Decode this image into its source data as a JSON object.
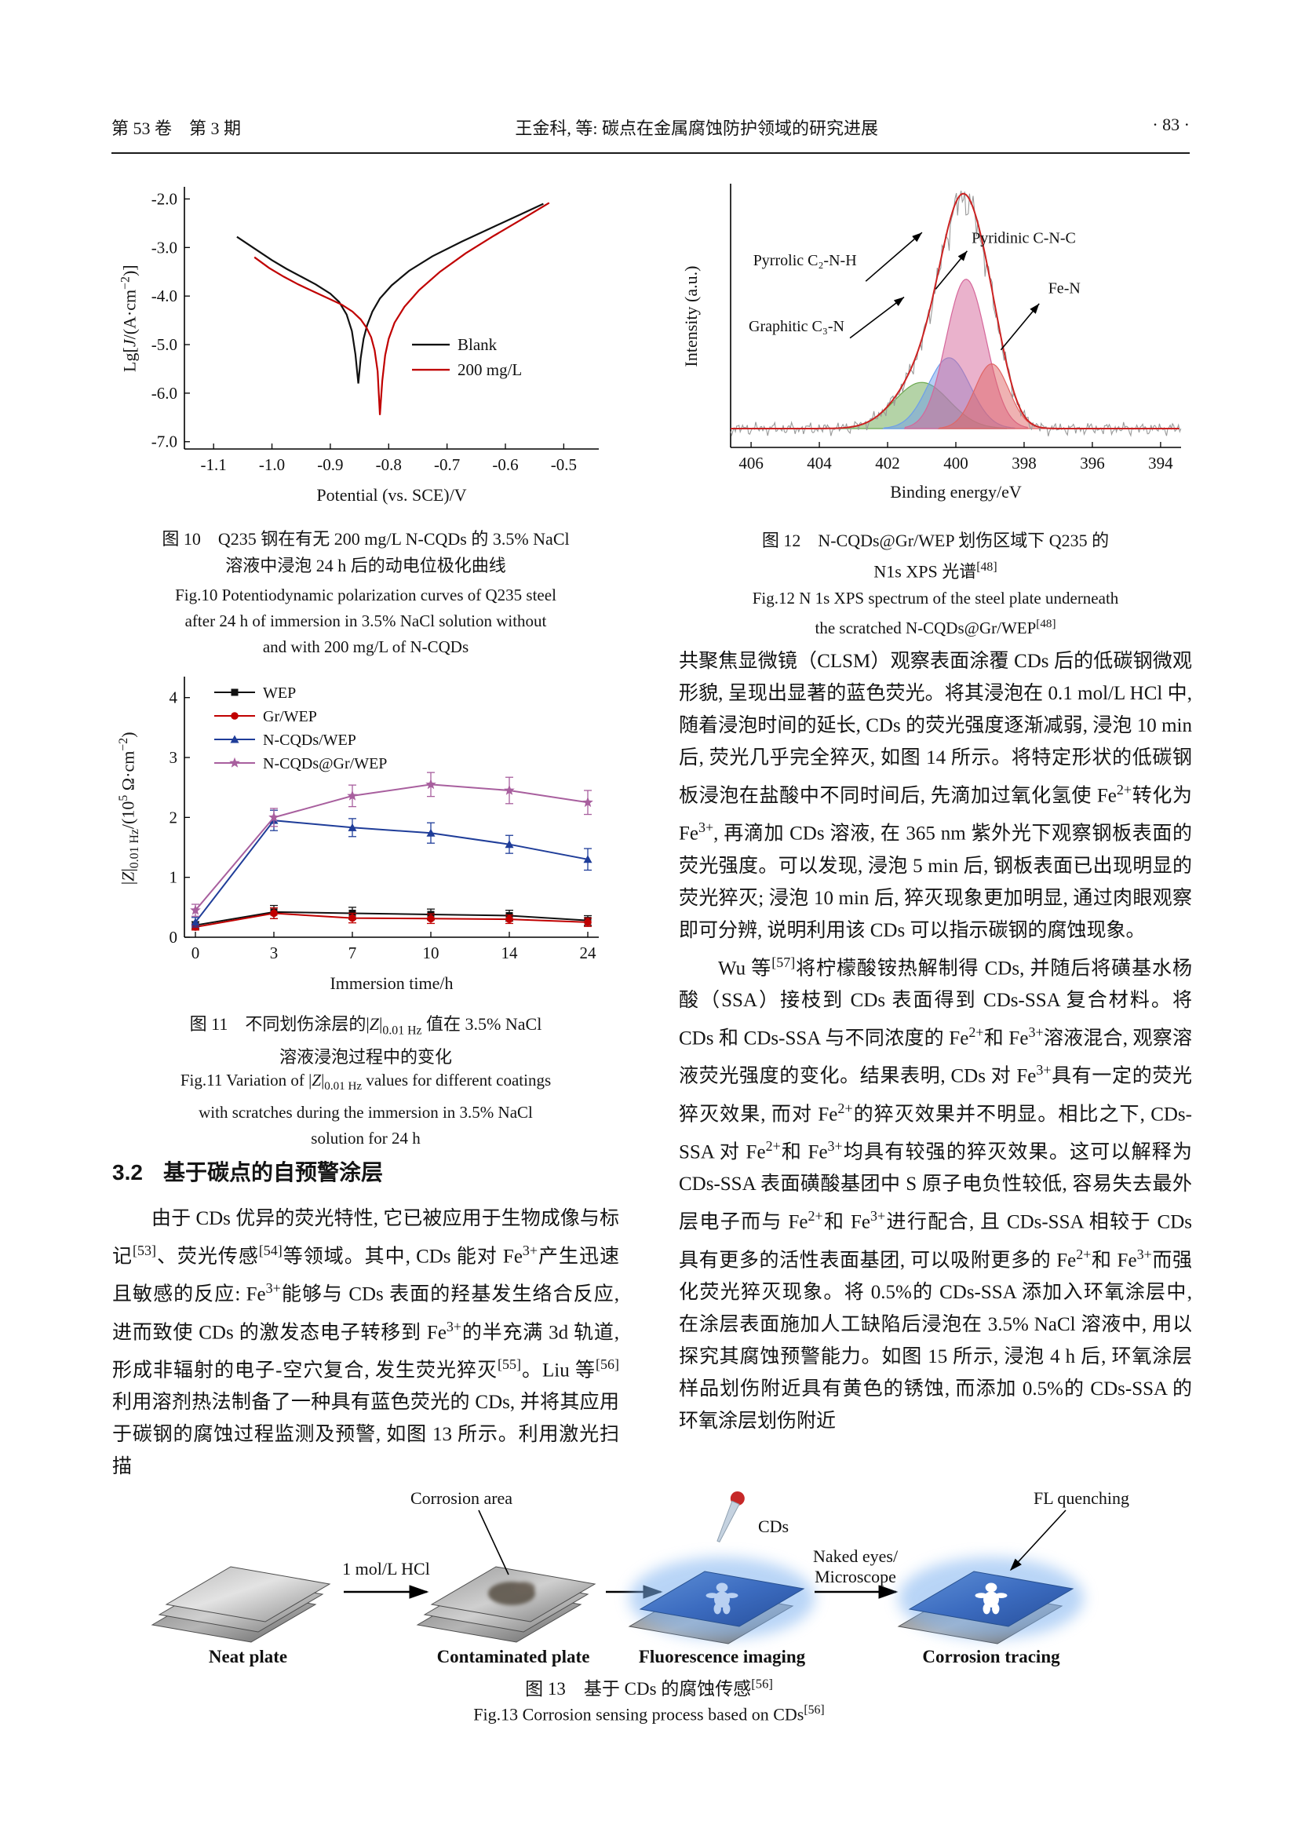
{
  "header": {
    "volume_issue": "第 53 卷　第 3 期",
    "running_title": "王金科, 等: 碳点在金属腐蚀防护领域的研究进展",
    "page_number": "· 83 ·"
  },
  "section_32": {
    "number": "3.2",
    "title": "基于碳点的自预警涂层"
  },
  "paragraphs": {
    "left_html": "由于 CDs 优异的荧光特性, 它已被应用于生物成像与标记<sup>[53]</sup>、荧光传感<sup>[54]</sup>等领域。其中, CDs 能对 Fe<sup>3+</sup>产生迅速且敏感的反应: Fe<sup>3+</sup>能够与 CDs 表面的羟基发生络合反应, 进而致使 CDs 的激发态电子转移到 Fe<sup>3+</sup>的半充满 3d 轨道, 形成非辐射的电子-空穴复合, 发生荧光猝灭<sup>[55]</sup>。Liu 等<sup>[56]</sup>利用溶剂热法制备了一种具有蓝色荧光的 CDs, 并将其应用于碳钢的腐蚀过程监测及预警, 如图 13 所示。利用激光扫描",
    "right1_html": "共聚焦显微镜（CLSM）观察表面涂覆 CDs 后的低碳钢微观形貌, 呈现出显著的蓝色荧光。将其浸泡在 0.1 mol/L HCl 中, 随着浸泡时间的延长, CDs 的荧光强度逐渐减弱, 浸泡 10 min 后, 荧光几乎完全猝灭, 如图 14 所示。将特定形状的低碳钢板浸泡在盐酸中不同时间后, 先滴加过氧化氢使 Fe<sup>2+</sup>转化为 Fe<sup>3+</sup>, 再滴加 CDs 溶液, 在 365 nm 紫外光下观察钢板表面的荧光强度。可以发现, 浸泡 5 min 后, 钢板表面已出现明显的荧光猝灭; 浸泡 10 min 后, 猝灭现象更加明显, 通过肉眼观察即可分辨, 说明利用该 CDs 可以指示碳钢的腐蚀现象。",
    "right2_html": "Wu 等<sup>[57]</sup>将柠檬酸铵热解制得 CDs, 并随后将磺基水杨酸（SSA）接枝到 CDs 表面得到 CDs-SSA 复合材料。将 CDs 和 CDs-SSA 与不同浓度的 Fe<sup>2+</sup>和 Fe<sup>3+</sup>溶液混合, 观察溶液荧光强度的变化。结果表明, CDs 对 Fe<sup>3+</sup>具有一定的荧光猝灭效果, 而对 Fe<sup>2+</sup>的猝灭效果并不明显。相比之下, CDs-SSA 对 Fe<sup>2+</sup>和 Fe<sup>3+</sup>均具有较强的猝灭效果。这可以解释为 CDs-SSA 表面磺酸基团中 S 原子电负性较低, 容易失去最外层电子而与 Fe<sup>2+</sup>和 Fe<sup>3+</sup>进行配合, 且 CDs-SSA 相较于 CDs 具有更多的活性表面基团, 可以吸附更多的 Fe<sup>2+</sup>和 Fe<sup>3+</sup>而强化荧光猝灭现象。将 0.5%的 CDs-SSA 添加入环氧涂层中, 在涂层表面施加人工缺陷后浸泡在 3.5% NaCl 溶液中, 用以探究其腐蚀预警能力。如图 15 所示, 浸泡 4 h 后, 环氧涂层样品划伤附近具有黄色的锈蚀, 而添加 0.5%的 CDs-SSA 的环氧涂层划伤附近"
  },
  "figures": {
    "fig10": {
      "caption_cn_html": "图 10　Q235 钢在有无 200 mg/L N-CQDs 的 3.5% NaCl<br>溶液中浸泡 24 h 后的动电位极化曲线",
      "caption_en_html": "Fig.10 Potentiodynamic polarization curves of Q235 steel<br>after 24 h of immersion in 3.5% NaCl solution without<br>and with 200 mg/L of N-CQDs"
    },
    "fig11": {
      "caption_cn_html": "图 11　不同划伤涂层的|<i>Z</i>|<sub>0.01 Hz</sub> 值在 3.5% NaCl<br>溶液浸泡过程中的变化",
      "caption_en_html": "Fig.11 Variation of |<i>Z</i>|<sub>0.01 Hz</sub> values for different coatings<br>with scratches during the immersion in 3.5% NaCl<br>solution for 24 h"
    },
    "fig12": {
      "caption_cn_html": "图 12　N-CQDs@Gr/WEP 划伤区域下 Q235 的<br>N1s XPS 光谱<sup>[48]</sup>",
      "caption_en_html": "Fig.12 N 1s XPS spectrum of the steel plate underneath<br>the scratched N-CQDs@Gr/WEP<sup>[48]</sup>"
    },
    "fig13": {
      "caption_cn_html": "图 13　基于 CDs 的腐蚀传感<sup>[56]</sup>",
      "caption_en_html": "Fig.13 Corrosion sensing process based on CDs<sup>[56]</sup>",
      "stage_labels": [
        "Neat plate",
        "Contaminated plate",
        "Fluorescence imaging",
        "Corrosion tracing"
      ],
      "arrow_labels": {
        "hcl": "1 mol/L HCl",
        "naked_eyes_line1": "Naked eyes/",
        "naked_eyes_line2": "Microscope"
      },
      "annotations": {
        "corrosion_area": "Corrosion area",
        "cds": "CDs",
        "fl_quenching": "FL quenching"
      }
    }
  },
  "chart_data": [
    {
      "id": "fig10",
      "type": "line",
      "xlabel": "Potential (vs. SCE)/V",
      "ylabel": "Lg[J/(A·cm⁻²)]",
      "ylabel_html": "Lg[<i>J</i>/(A·cm<sup>−2</sup>)]",
      "xlim": [
        -1.15,
        -0.44
      ],
      "ylim": [
        -7.15,
        -1.75
      ],
      "xticks": [
        -1.1,
        -1.0,
        -0.9,
        -0.8,
        -0.7,
        -0.6,
        -0.5
      ],
      "yticks": [
        -7.0,
        -6.0,
        -5.0,
        -4.0,
        -3.0,
        -2.0
      ],
      "legend_position": "center-right",
      "series": [
        {
          "name": "Blank",
          "color": "#111111",
          "x": [
            -1.06,
            -1.03,
            -1.0,
            -0.975,
            -0.95,
            -0.925,
            -0.9,
            -0.885,
            -0.872,
            -0.863,
            -0.857,
            -0.852,
            -0.848,
            -0.843,
            -0.837,
            -0.828,
            -0.815,
            -0.795,
            -0.765,
            -0.725,
            -0.675,
            -0.625,
            -0.578,
            -0.535
          ],
          "y": [
            -2.78,
            -3.02,
            -3.26,
            -3.44,
            -3.6,
            -3.76,
            -3.95,
            -4.12,
            -4.38,
            -4.72,
            -5.2,
            -5.8,
            -5.28,
            -4.88,
            -4.6,
            -4.32,
            -4.05,
            -3.78,
            -3.48,
            -3.18,
            -2.88,
            -2.6,
            -2.34,
            -2.1
          ]
        },
        {
          "name": "200 mg/L",
          "color": "#c00000",
          "x": [
            -1.03,
            -1.005,
            -0.98,
            -0.955,
            -0.93,
            -0.905,
            -0.88,
            -0.862,
            -0.848,
            -0.838,
            -0.83,
            -0.824,
            -0.819,
            -0.815,
            -0.811,
            -0.806,
            -0.8,
            -0.79,
            -0.773,
            -0.748,
            -0.712,
            -0.668,
            -0.62,
            -0.572,
            -0.525
          ],
          "y": [
            -3.2,
            -3.42,
            -3.6,
            -3.76,
            -3.9,
            -4.04,
            -4.18,
            -4.32,
            -4.48,
            -4.65,
            -4.85,
            -5.12,
            -5.55,
            -6.45,
            -5.75,
            -5.22,
            -4.88,
            -4.55,
            -4.22,
            -3.88,
            -3.5,
            -3.12,
            -2.76,
            -2.42,
            -2.08
          ]
        }
      ]
    },
    {
      "id": "fig11",
      "type": "line",
      "xlabel": "Immersion time/h",
      "ylabel": "|Z|0.01 Hz/(10⁵ Ω·cm⁻²)",
      "ylabel_html": "|<i>Z</i>|<sub>0.01 Hz</sub>/(10<sup>5</sup> Ω·cm<sup>−2</sup>)",
      "categories": [
        "0",
        "3",
        "7",
        "10",
        "14",
        "24"
      ],
      "ylim": [
        0,
        4.35
      ],
      "yticks": [
        0,
        1,
        2,
        3,
        4
      ],
      "legend_position": "top-left",
      "series": [
        {
          "name": "WEP",
          "color": "#111111",
          "marker": "square",
          "values": [
            0.2,
            0.42,
            0.4,
            0.38,
            0.36,
            0.28
          ],
          "errors": [
            0.06,
            0.11,
            0.1,
            0.09,
            0.09,
            0.08
          ]
        },
        {
          "name": "Gr/WEP",
          "color": "#c00000",
          "marker": "circle",
          "values": [
            0.17,
            0.4,
            0.32,
            0.31,
            0.3,
            0.25
          ],
          "errors": [
            0.05,
            0.09,
            0.08,
            0.08,
            0.07,
            0.07
          ]
        },
        {
          "name": "N-CQDs/WEP",
          "color": "#1f3d99",
          "marker": "triangle",
          "values": [
            0.25,
            1.95,
            1.83,
            1.74,
            1.55,
            1.3
          ],
          "errors": [
            0.08,
            0.17,
            0.15,
            0.17,
            0.15,
            0.18
          ]
        },
        {
          "name": "N-CQDs@Gr/WEP",
          "color": "#a85f9e",
          "marker": "star",
          "values": [
            0.45,
            2.0,
            2.36,
            2.55,
            2.45,
            2.25
          ],
          "errors": [
            0.1,
            0.15,
            0.18,
            0.2,
            0.22,
            0.2
          ]
        }
      ]
    },
    {
      "id": "fig12",
      "type": "xps",
      "xlabel": "Binding energy/eV",
      "ylabel": "Intensity (a.u.)",
      "xlim": [
        406.6,
        393.4
      ],
      "xticks": [
        406,
        404,
        402,
        400,
        398,
        396,
        394
      ],
      "components": [
        {
          "name": "Graphitic C₃-N",
          "center": 401.0,
          "sigma": 0.8,
          "amp": 0.3,
          "color": "#6aa84f"
        },
        {
          "name": "Pyrrolic C₂-N-H",
          "center": 400.2,
          "sigma": 0.62,
          "amp": 0.46,
          "color": "#6d9eeb"
        },
        {
          "name": "Pyridinic C-N-C",
          "center": 399.7,
          "sigma": 0.58,
          "amp": 0.97,
          "color": "#d5669a"
        },
        {
          "name": "Fe-N",
          "center": 398.95,
          "sigma": 0.5,
          "amp": 0.42,
          "color": "#e06666"
        }
      ],
      "annotations": [
        {
          "text": "Pyrrolic C₂-N-H",
          "tx": 0.05,
          "ty": 0.31,
          "x1": 0.3,
          "y1": 0.37,
          "x2": 0.425,
          "y2": 0.185
        },
        {
          "text": "Pyridinic C-N-C",
          "tx": 0.535,
          "ty": 0.225,
          "x1": 0.455,
          "y1": 0.4,
          "x2": 0.525,
          "y2": 0.255
        },
        {
          "text": "Graphitic C₃-N",
          "tx": 0.04,
          "ty": 0.56,
          "x1": 0.265,
          "y1": 0.585,
          "x2": 0.385,
          "y2": 0.43
        },
        {
          "text": "Fe-N",
          "tx": 0.705,
          "ty": 0.415,
          "x1": 0.6,
          "y1": 0.63,
          "x2": 0.685,
          "y2": 0.455
        }
      ],
      "line_colors": {
        "raw": "#999999",
        "envelope": "#cc2222"
      }
    }
  ]
}
